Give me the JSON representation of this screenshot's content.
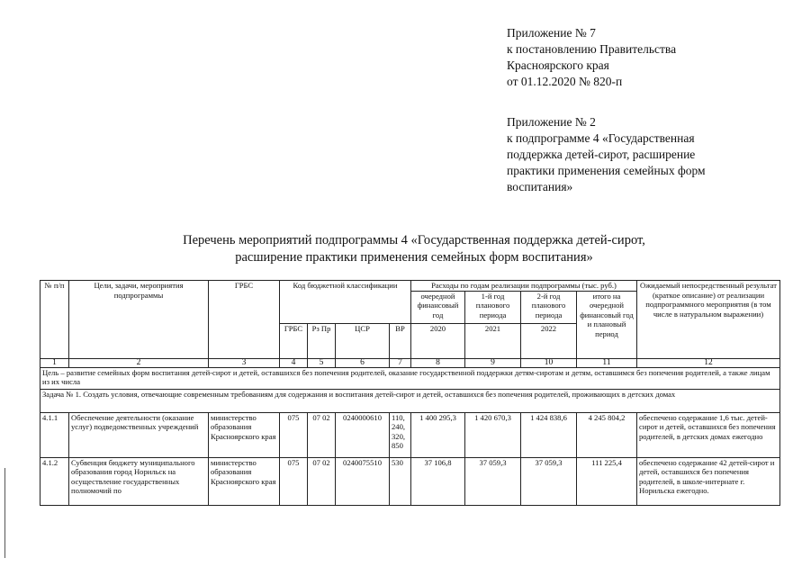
{
  "appendix_7": [
    "Приложение № 7",
    "к постановлению Правительства",
    "Красноярского края",
    "от 01.12.2020 № 820-п"
  ],
  "appendix_2": [
    "Приложение № 2",
    "к подпрограмме 4 «Государственная",
    "поддержка детей-сирот, расширение",
    "практики применения семейных форм",
    "воспитания»"
  ],
  "title": [
    "Перечень мероприятий подпрограммы 4 «Государственная поддержка детей-сирот,",
    "расширение практики применения семейных форм воспитания»"
  ],
  "table": {
    "headers": {
      "num": "№ п/п",
      "goals": "Цели, задачи, мероприятия подпрограммы",
      "grbs": "ГРБС",
      "budget_code": "Код бюджетной классификации",
      "expenses": "Расходы по годам реализации подпрограммы (тыс. руб.)",
      "result": "Ожидаемый непосредственный результат (краткое описание) от реализации подпрограммного мероприятия (в том числе в натуральном выражении)",
      "year_current": "очередной финансовый год",
      "year_plan1": "1-й год планового периода",
      "year_plan2": "2-й год планового периода",
      "total": "итого на очередной финансовый год и плановый период",
      "code_grbs": "ГРБС",
      "code_rzpr": "Рз Пр",
      "code_csr": "ЦСР",
      "code_vr": "ВР",
      "y2020": "2020",
      "y2021": "2021",
      "y2022": "2022"
    },
    "index_row": [
      "1",
      "2",
      "3",
      "4",
      "5",
      "6",
      "7",
      "8",
      "9",
      "10",
      "11",
      "12"
    ],
    "goal": "Цель – развитие семейных форм воспитания детей-сирот и детей, оставшихся без попечения родителей, оказание государственной поддержки детям-сиротам и детям, оставшимся без попечения родителей, а также лицам из их числа",
    "task": "Задача № 1. Создать условия, отвечающие современным требованиям для содержания и воспитания детей-сирот и детей, оставшихся без попечения родителей, проживающих в детских домах",
    "rows": [
      {
        "num": "4.1.1",
        "name": "Обеспечение деятельности (оказание услуг) подведомственных учреждений",
        "grbs": "министерство образования Красноярского края",
        "code_grbs": "075",
        "rzpr": "07 02",
        "csr": "0240000610",
        "vr": "110, 240, 320, 850",
        "y2020": "1 400 295,3",
        "y2021": "1 420 670,3",
        "y2022": "1 424 838,6",
        "total": "4 245 804,2",
        "result": "обеспечено содержание 1,6 тыс. детей-сирот и детей, оставшихся без попечения родителей, в детских домах ежегодно"
      },
      {
        "num": "4.1.2",
        "name": "Субвенция бюджету муниципального образования город Норильск на осуществление государственных полномочий по",
        "grbs": "министерство образования Красноярского края",
        "code_grbs": "075",
        "rzpr": "07 02",
        "csr": "0240075510",
        "vr": "530",
        "y2020": "37 106,8",
        "y2021": "37 059,3",
        "y2022": "37 059,3",
        "total": "111 225,4",
        "result": "обеспечено содержание 42 детей-сирот и детей, оставшихся без попечения родителей, в школе-интернате г. Норильска ежегодно."
      }
    ]
  }
}
